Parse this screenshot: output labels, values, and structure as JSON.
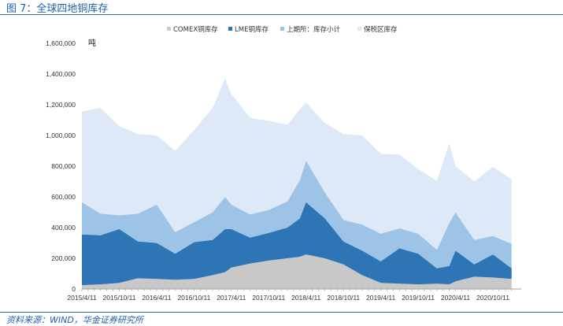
{
  "figure": {
    "title": "图 7：全球四地铜库存",
    "source": "资料来源：WIND，华金证券研究所"
  },
  "chart_data": {
    "type": "area",
    "stacked": true,
    "unit_label": "吨",
    "ylim": [
      0,
      1600000
    ],
    "yticks": [
      0,
      200000,
      400000,
      600000,
      800000,
      1000000,
      1200000,
      1400000,
      1600000
    ],
    "ytick_labels": [
      "0",
      "200,000",
      "400,000",
      "600,000",
      "800,000",
      "1,000,000",
      "1,200,000",
      "1,400,000",
      "1,600,000"
    ],
    "xtick_labels": [
      "2015/4/11",
      "2015/10/11",
      "2016/4/11",
      "2016/10/11",
      "2017/4/11",
      "2017/10/11",
      "2018/4/11",
      "2018/10/11",
      "2019/4/11",
      "2019/10/11",
      "2020/4/11",
      "2020/10/11"
    ],
    "legend_position": "top",
    "x": [
      "2015/4",
      "2015/7",
      "2015/10",
      "2016/1",
      "2016/4",
      "2016/7",
      "2016/10",
      "2017/1",
      "2017/3",
      "2017/4",
      "2017/7",
      "2017/10",
      "2018/1",
      "2018/3",
      "2018/4",
      "2018/7",
      "2018/10",
      "2019/1",
      "2019/4",
      "2019/7",
      "2019/10",
      "2020/1",
      "2020/3",
      "2020/4",
      "2020/7",
      "2020/10",
      "2021/1"
    ],
    "series": [
      {
        "name": "COMEX铜库存",
        "color": "#c8c8c8",
        "values": [
          25000,
          30000,
          40000,
          70000,
          65000,
          60000,
          65000,
          90000,
          110000,
          140000,
          165000,
          185000,
          200000,
          210000,
          225000,
          200000,
          160000,
          90000,
          40000,
          35000,
          30000,
          35000,
          30000,
          50000,
          80000,
          75000,
          65000
        ]
      },
      {
        "name": "LME铜库存",
        "color": "#2e75b6",
        "values": [
          330000,
          320000,
          350000,
          240000,
          235000,
          170000,
          240000,
          230000,
          280000,
          250000,
          170000,
          180000,
          200000,
          250000,
          340000,
          260000,
          150000,
          160000,
          140000,
          230000,
          200000,
          100000,
          120000,
          200000,
          80000,
          150000,
          70000
        ]
      },
      {
        "name": "上期所：库存小计",
        "color": "#9dc3e6",
        "values": [
          210000,
          140000,
          90000,
          180000,
          250000,
          140000,
          130000,
          180000,
          210000,
          160000,
          150000,
          150000,
          170000,
          250000,
          270000,
          170000,
          140000,
          170000,
          180000,
          130000,
          130000,
          120000,
          280000,
          250000,
          160000,
          120000,
          160000
        ]
      },
      {
        "name": "保税区库存",
        "color": "#dde9f6",
        "values": [
          590000,
          690000,
          580000,
          520000,
          450000,
          530000,
          600000,
          680000,
          770000,
          720000,
          630000,
          580000,
          500000,
          460000,
          380000,
          450000,
          560000,
          580000,
          520000,
          480000,
          420000,
          450000,
          520000,
          300000,
          380000,
          450000,
          420000
        ]
      }
    ]
  }
}
